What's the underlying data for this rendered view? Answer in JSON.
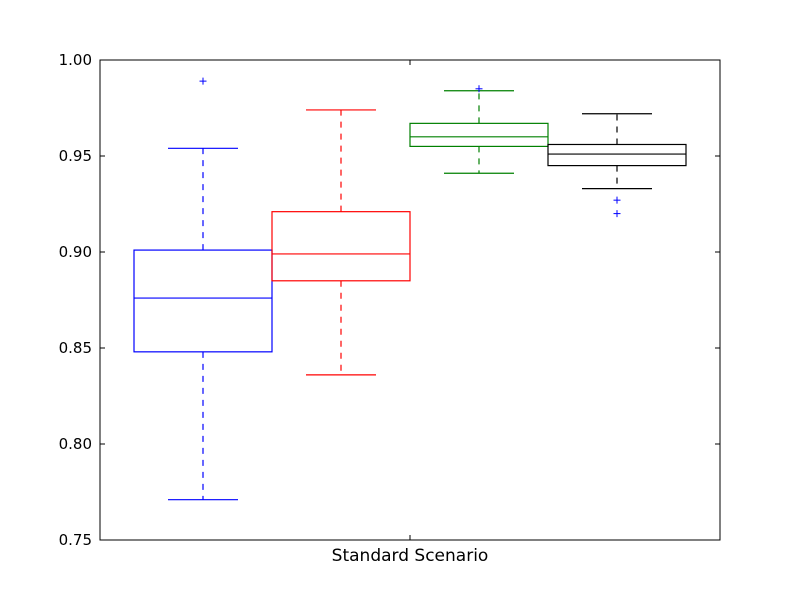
{
  "chart_data": {
    "type": "box",
    "title": "",
    "xlabel": "Standard Scenario",
    "ylabel": "",
    "ylim": [
      0.75,
      1.0
    ],
    "yticks": [
      0.75,
      0.8,
      0.85,
      0.9,
      0.95,
      1.0
    ],
    "ytick_labels": [
      "0.75",
      "0.80",
      "0.85",
      "0.90",
      "0.95",
      "1.00"
    ],
    "grid": false,
    "legend": "none",
    "series": [
      {
        "color": "#0000ff",
        "whisker_low": 0.771,
        "q1": 0.848,
        "median": 0.876,
        "q3": 0.901,
        "whisker_high": 0.954,
        "outliers": [
          0.989
        ]
      },
      {
        "color": "#ff0000",
        "whisker_low": 0.836,
        "q1": 0.885,
        "median": 0.899,
        "q3": 0.921,
        "whisker_high": 0.974,
        "outliers": []
      },
      {
        "color": "#008000",
        "whisker_low": 0.941,
        "q1": 0.955,
        "median": 0.96,
        "q3": 0.967,
        "whisker_high": 0.984,
        "outliers": [
          0.985
        ]
      },
      {
        "color": "#000000",
        "whisker_low": 0.933,
        "q1": 0.945,
        "median": 0.951,
        "q3": 0.956,
        "whisker_high": 0.972,
        "outliers": [
          0.927,
          0.92
        ]
      }
    ],
    "outlier_color": "#0000ff"
  }
}
